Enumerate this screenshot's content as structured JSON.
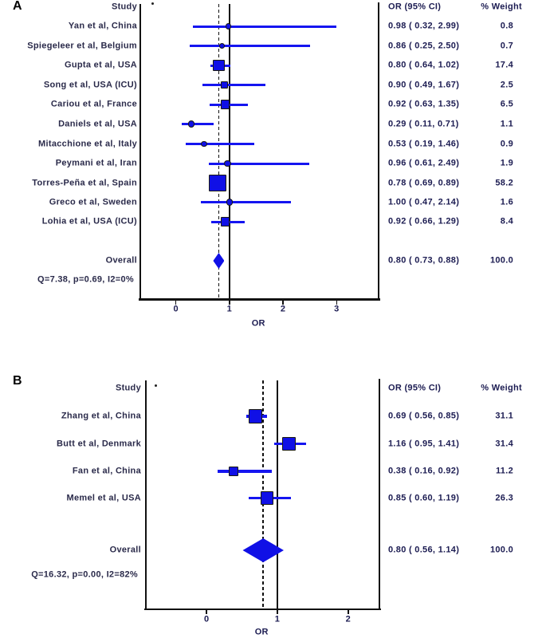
{
  "chart_data": [
    {
      "type": "forest",
      "panel": "A",
      "column_headers": {
        "study": "Study",
        "dot": ".",
        "or_ci": "OR (95% CI)",
        "weight": "% Weight"
      },
      "xlabel": "OR",
      "x_ticks": [
        0,
        1,
        2,
        3
      ],
      "reference_line_or": 1,
      "pooled_dashed_line_or": 0.8,
      "studies": [
        {
          "label": "Yan et al, China",
          "or": 0.98,
          "ci_low": 0.32,
          "ci_high": 2.99,
          "weight": 0.8
        },
        {
          "label": "Spiegeleer et al, Belgium",
          "or": 0.86,
          "ci_low": 0.25,
          "ci_high": 2.5,
          "weight": 0.7
        },
        {
          "label": "Gupta et al, USA",
          "or": 0.8,
          "ci_low": 0.64,
          "ci_high": 1.02,
          "weight": 17.4
        },
        {
          "label": "Song et al, USA (ICU)",
          "or": 0.9,
          "ci_low": 0.49,
          "ci_high": 1.67,
          "weight": 2.5
        },
        {
          "label": "Cariou et al, France",
          "or": 0.92,
          "ci_low": 0.63,
          "ci_high": 1.35,
          "weight": 6.5
        },
        {
          "label": "Daniels et al, USA",
          "or": 0.29,
          "ci_low": 0.11,
          "ci_high": 0.71,
          "weight": 1.1
        },
        {
          "label": "Mitacchione et al, Italy",
          "or": 0.53,
          "ci_low": 0.19,
          "ci_high": 1.46,
          "weight": 0.9
        },
        {
          "label": "Peymani et al, Iran",
          "or": 0.96,
          "ci_low": 0.61,
          "ci_high": 2.49,
          "weight": 1.9
        },
        {
          "label": "Torres-Peña et al, Spain",
          "or": 0.78,
          "ci_low": 0.69,
          "ci_high": 0.89,
          "weight": 58.2
        },
        {
          "label": "Greco et al, Sweden",
          "or": 1.0,
          "ci_low": 0.47,
          "ci_high": 2.14,
          "weight": 1.6
        },
        {
          "label": "Lohia et al, USA (ICU)",
          "or": 0.92,
          "ci_low": 0.66,
          "ci_high": 1.29,
          "weight": 8.4
        }
      ],
      "overall": {
        "label": "Overall",
        "or": 0.8,
        "ci_low": 0.73,
        "ci_high": 0.88,
        "weight": 100.0
      },
      "heterogeneity": "Q=7.38, p=0.69, I2=0%"
    },
    {
      "type": "forest",
      "panel": "B",
      "column_headers": {
        "study": "Study",
        "dot": ".",
        "or_ci": "OR (95% CI)",
        "weight": "% Weight"
      },
      "xlabel": "OR",
      "x_ticks": [
        0,
        1,
        2
      ],
      "reference_line_or": 1,
      "pooled_dashed_line_or": 0.8,
      "studies": [
        {
          "label": "Zhang et al, China",
          "or": 0.69,
          "ci_low": 0.56,
          "ci_high": 0.85,
          "weight": 31.1
        },
        {
          "label": "Butt et al, Denmark",
          "or": 1.16,
          "ci_low": 0.95,
          "ci_high": 1.41,
          "weight": 31.4
        },
        {
          "label": "Fan et al, China",
          "or": 0.38,
          "ci_low": 0.16,
          "ci_high": 0.92,
          "weight": 11.2
        },
        {
          "label": "Memel et al, USA",
          "or": 0.85,
          "ci_low": 0.6,
          "ci_high": 1.19,
          "weight": 26.3
        }
      ],
      "overall": {
        "label": "Overall",
        "or": 0.8,
        "ci_low": 0.56,
        "ci_high": 1.14,
        "weight": 100.0
      },
      "heterogeneity": "Q=16.32, p=0.00, I2=82%"
    }
  ]
}
